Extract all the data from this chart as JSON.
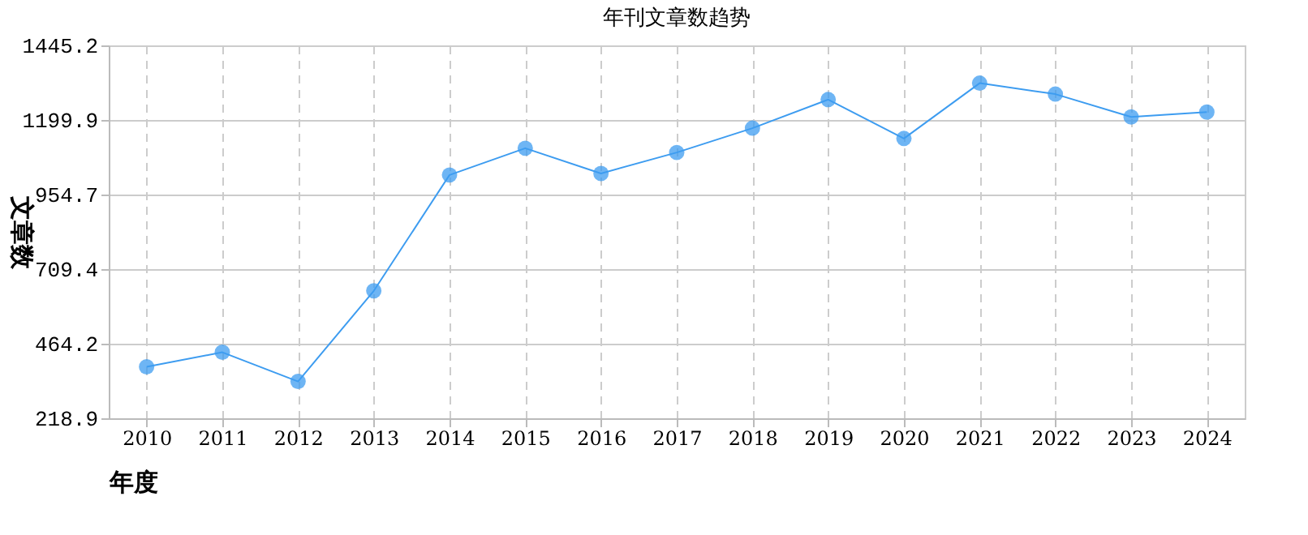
{
  "chart_data": {
    "type": "line",
    "title": "年刊文章数趋势",
    "xlabel": "年度",
    "ylabel": "文章数",
    "categories": [
      "2010",
      "2011",
      "2012",
      "2013",
      "2014",
      "2015",
      "2016",
      "2017",
      "2018",
      "2019",
      "2020",
      "2021",
      "2022",
      "2023",
      "2024"
    ],
    "series": [
      {
        "color": "#3d9cf0",
        "values": [
          388,
          436,
          340,
          638,
          1019,
          1107,
          1024,
          1093,
          1173,
          1267,
          1139,
          1321,
          1285,
          1210,
          1226
        ]
      }
    ],
    "ylim": [
      218.9,
      1445.2
    ],
    "yticks": [
      218.9,
      464.2,
      709.4,
      954.7,
      1199.9,
      1445.2
    ],
    "grid": true,
    "marker": "circle",
    "line_style": "solid"
  }
}
